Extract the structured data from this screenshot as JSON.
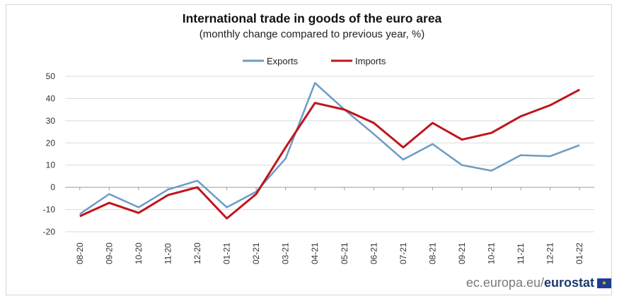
{
  "chart_data": {
    "type": "line",
    "title": "International trade in goods of the euro area",
    "subtitle": "(monthly change compared to previous year, %)",
    "categories": [
      "08-20",
      "09-20",
      "10-20",
      "11-20",
      "12-20",
      "01-21",
      "02-21",
      "03-21",
      "04-21",
      "05-21",
      "06-21",
      "07-21",
      "08-21",
      "09-21",
      "10-21",
      "11-21",
      "12-21",
      "01-22"
    ],
    "series": [
      {
        "name": "Exports",
        "color": "#6b9cc3",
        "values": [
          -12,
          -3,
          -9,
          -1,
          3,
          -9,
          -2,
          13,
          47,
          35,
          24,
          12.5,
          19.5,
          10,
          7.5,
          14.5,
          14,
          19
        ]
      },
      {
        "name": "Imports",
        "color": "#c0141c",
        "values": [
          -13,
          -7,
          -11.5,
          -3.5,
          0,
          -14,
          -3,
          18,
          38,
          35,
          29,
          18,
          29,
          21.5,
          24.5,
          32,
          37,
          44
        ]
      }
    ],
    "yticks": [
      "50",
      "40",
      "30",
      "20",
      "10",
      "0",
      "-10",
      "-20"
    ],
    "ylim": [
      -20,
      50
    ],
    "legend_position": "top-center",
    "grid": true
  },
  "footer": {
    "site": "ec.europa.eu/",
    "brand": "eurostat",
    "flag_icon": "eu-flag-icon"
  }
}
